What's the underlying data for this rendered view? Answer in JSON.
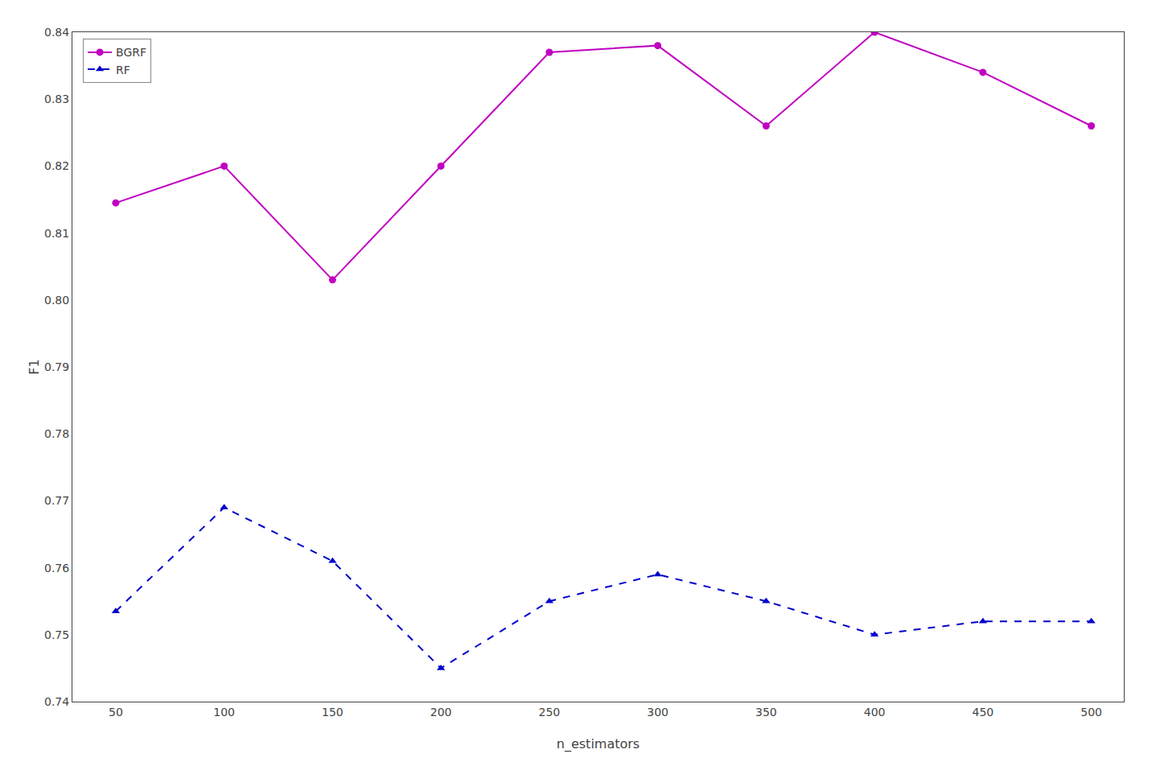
{
  "chart_data": {
    "type": "line",
    "xlabel": "n_estimators",
    "ylabel": "F1",
    "x": [
      50,
      100,
      150,
      200,
      250,
      300,
      350,
      400,
      450,
      500
    ],
    "series": [
      {
        "name": "BGRF",
        "color": "#c000c0",
        "marker": "circle",
        "line_style": "solid",
        "values": [
          0.8145,
          0.82,
          0.803,
          0.82,
          0.837,
          0.838,
          0.826,
          0.84,
          0.834,
          0.826
        ]
      },
      {
        "name": "RF",
        "color": "#0000cc",
        "marker": "triangle",
        "line_style": "dashed",
        "values": [
          0.7535,
          0.769,
          0.761,
          0.745,
          0.755,
          0.759,
          0.755,
          0.75,
          0.752,
          0.752
        ]
      }
    ],
    "xlim": [
      30,
      515
    ],
    "xticks": [
      50,
      100,
      150,
      200,
      250,
      300,
      350,
      400,
      450,
      500
    ],
    "ylim": [
      0.74,
      0.84
    ],
    "yticks": [
      0.74,
      0.75,
      0.76,
      0.77,
      0.78,
      0.79,
      {
        "value": 0.8,
        "label": "0.80"
      },
      0.81,
      0.82,
      0.83,
      0.84
    ],
    "grid": false,
    "legend": "upper left"
  }
}
